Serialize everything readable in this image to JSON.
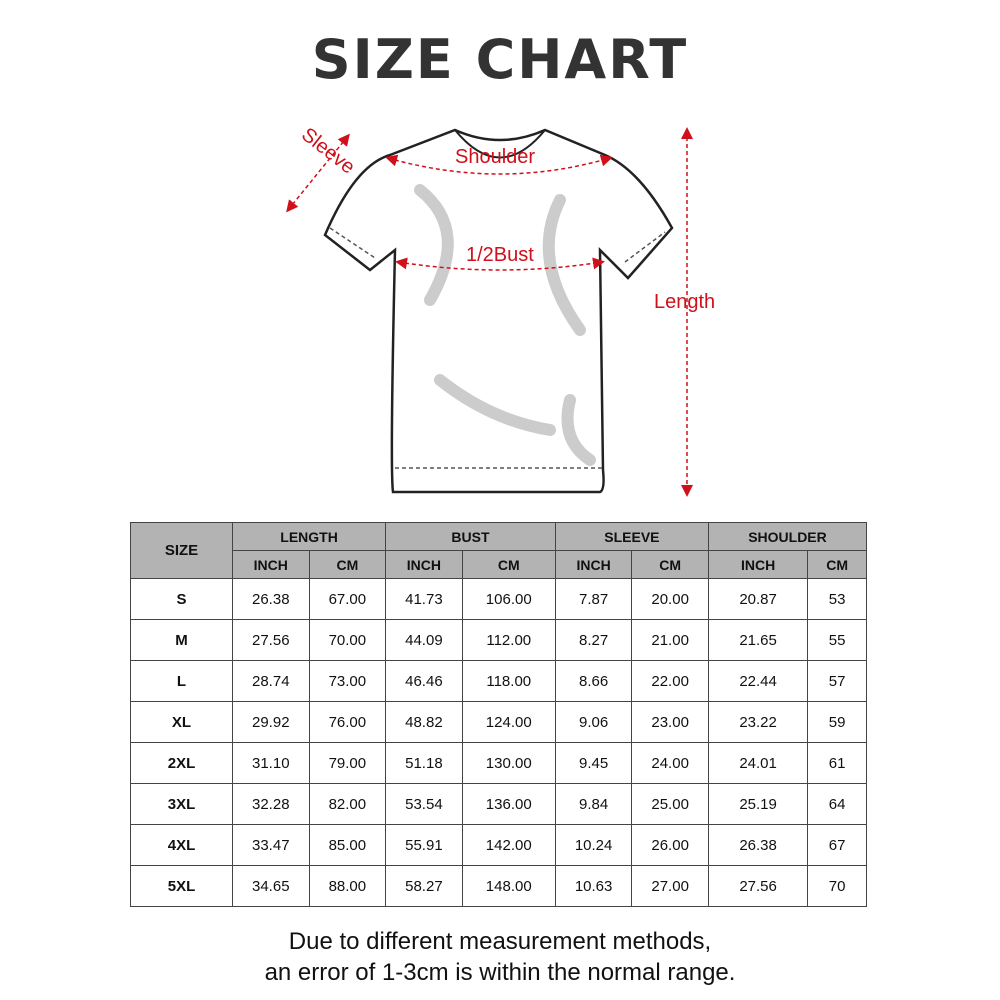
{
  "title": "SIZE CHART",
  "diagram": {
    "labels": {
      "sleeve": "Sleeve",
      "shoulder": "Shoulder",
      "bust": "1/2Bust",
      "length": "Length"
    },
    "accent_color": "#d0101a"
  },
  "table": {
    "size_header": "SIZE",
    "groups": [
      "LENGTH",
      "BUST",
      "SLEEVE",
      "SHOULDER"
    ],
    "units": [
      "INCH",
      "CM",
      "INCH",
      "CM",
      "INCH",
      "CM",
      "INCH",
      "CM"
    ],
    "header_color": "#b3b3b3",
    "rows": [
      [
        "S",
        "26.38",
        "67.00",
        "41.73",
        "106.00",
        "7.87",
        "20.00",
        "20.87",
        "53"
      ],
      [
        "M",
        "27.56",
        "70.00",
        "44.09",
        "112.00",
        "8.27",
        "21.00",
        "21.65",
        "55"
      ],
      [
        "L",
        "28.74",
        "73.00",
        "46.46",
        "118.00",
        "8.66",
        "22.00",
        "22.44",
        "57"
      ],
      [
        "XL",
        "29.92",
        "76.00",
        "48.82",
        "124.00",
        "9.06",
        "23.00",
        "23.22",
        "59"
      ],
      [
        "2XL",
        "31.10",
        "79.00",
        "51.18",
        "130.00",
        "9.45",
        "24.00",
        "24.01",
        "61"
      ],
      [
        "3XL",
        "32.28",
        "82.00",
        "53.54",
        "136.00",
        "9.84",
        "25.00",
        "25.19",
        "64"
      ],
      [
        "4XL",
        "33.47",
        "85.00",
        "55.91",
        "142.00",
        "10.24",
        "26.00",
        "26.38",
        "67"
      ],
      [
        "5XL",
        "34.65",
        "88.00",
        "58.27",
        "148.00",
        "10.63",
        "27.00",
        "27.56",
        "70"
      ]
    ]
  },
  "note": {
    "line1": "Due to different measurement methods,",
    "line2": "an error of 1-3cm is within the normal range."
  }
}
